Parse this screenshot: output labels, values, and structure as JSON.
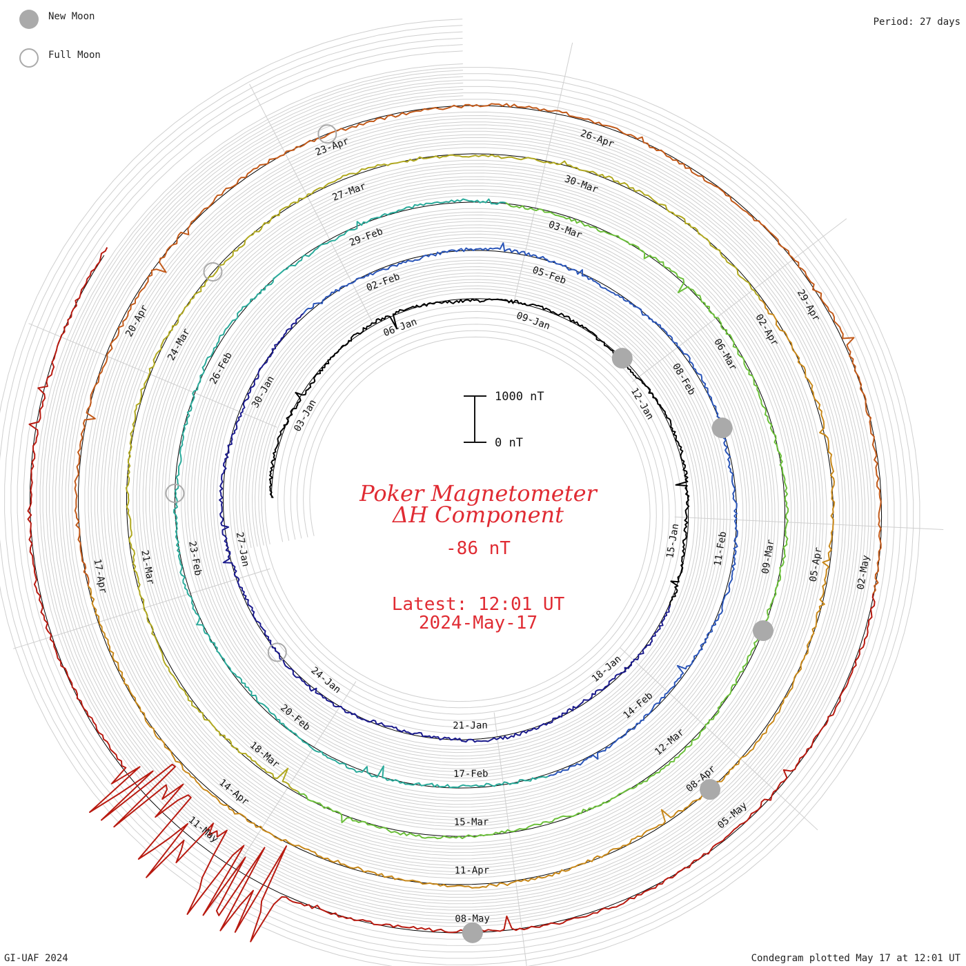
{
  "legend": {
    "new_moon": "New Moon",
    "full_moon": "Full Moon",
    "new_moon_color": "#aaaaaa",
    "full_moon_color": "#aaaaaa"
  },
  "header": {
    "period": "Period: 27 days"
  },
  "footer": {
    "credit": "GI-UAF 2024",
    "plotted": "Condegram plotted May 17 at 12:01 UT"
  },
  "center": {
    "title_line1": "Poker Magnetometer",
    "title_line2": "ΔH Component",
    "current_value": "-86 nT",
    "latest_time": "Latest: 12:01 UT",
    "latest_date": "2024-May-17",
    "text_color": "#e02b33"
  },
  "scale_bar": {
    "top_label": "1000 nT",
    "bottom_label": "0 nT",
    "value_nT": 1000
  },
  "chart_data": {
    "type": "line",
    "subtype": "spiral condegram",
    "title": "Poker Magnetometer ΔH Component",
    "period_days": 27,
    "start_date": "2024-01-01",
    "end_date": "2024-05-17",
    "units": "nT",
    "grid": true,
    "series_colors": [
      "#000000",
      "#1a1a8c",
      "#2a55b8",
      "#2aaa9a",
      "#6bbf3a",
      "#b0a820",
      "#c8881a",
      "#c25a1a",
      "#b81a10"
    ],
    "date_labels": [
      "03-Jan",
      "06-Jan",
      "09-Jan",
      "12-Jan",
      "15-Jan",
      "18-Jan",
      "21-Jan",
      "24-Jan",
      "27-Jan",
      "30-Jan",
      "02-Feb",
      "05-Feb",
      "08-Feb",
      "11-Feb",
      "14-Feb",
      "17-Feb",
      "20-Feb",
      "23-Feb",
      "26-Feb",
      "29-Feb",
      "03-Mar",
      "06-Mar",
      "09-Mar",
      "12-Mar",
      "15-Mar",
      "18-Mar",
      "21-Mar",
      "24-Mar",
      "27-Mar",
      "30-Mar",
      "02-Apr",
      "05-Apr",
      "08-Apr",
      "11-Apr",
      "14-Apr",
      "17-Apr",
      "20-Apr",
      "23-Apr",
      "26-Apr",
      "29-Apr",
      "02-May",
      "05-May",
      "08-May",
      "11-May"
    ],
    "new_moons": [
      "2024-01-11",
      "2024-02-09",
      "2024-03-10",
      "2024-04-08",
      "2024-05-08"
    ],
    "full_moons": [
      "2024-01-25",
      "2024-02-24",
      "2024-03-25",
      "2024-04-23"
    ],
    "storm": {
      "start": "2024-05-10",
      "end": "2024-05-12",
      "peak_excursion_nT": 1500
    }
  }
}
